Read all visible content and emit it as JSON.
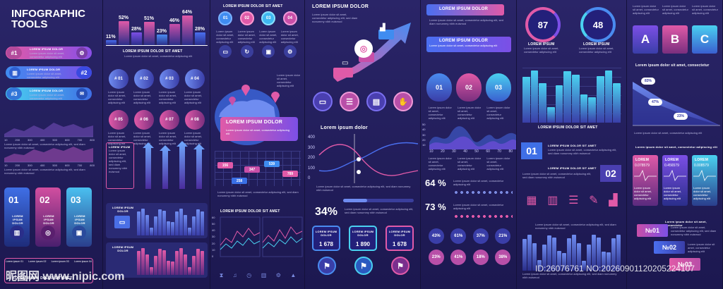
{
  "title": {
    "line1": "INFOGRAPHIC",
    "line2": "TOOLS"
  },
  "lorem": {
    "heading_a": "LOREM IPSUM DOLOR SIT AMET",
    "heading_b": "LOREM IPSUM DOLOR",
    "heading_c": "LOREM IPSUM",
    "heading_d": "Lorem ipsum dolor",
    "heading_e": "Lorem ipsum dolor sit amet, consectetur",
    "heading_f": "Lorem ipsum dolor sit amet, consectetur adipiscing elit",
    "body": "Lorem ipsum dolor sit amet, consectetur adipiscing elit, sed diam nonummy nibh euismod",
    "body_short": "Lorem ipsum dolor sit amet, consectetur adipiscing elit"
  },
  "col1": {
    "steps": [
      "#1",
      "#2",
      "#3"
    ],
    "axis": [
      "10",
      "200",
      "300",
      "400",
      "500",
      "600",
      "700",
      "800"
    ],
    "cards": [
      "01",
      "02",
      "03"
    ],
    "card_label": "LOREM IPSUM DOLOR",
    "bottom": "LOREM IPSUM DOLOR SIT AMET",
    "tabs": [
      "Lorem ipsum 01",
      "Lorem ipsum 02",
      "Lorem ipsum 03",
      "Lorem ipsum 04"
    ]
  },
  "col2": {
    "bar_pcts": [
      "11%",
      "52%",
      "28%",
      "51%",
      "23%",
      "46%",
      "64%",
      "28%"
    ],
    "bar_values": [
      11,
      52,
      28,
      51,
      23,
      46,
      64,
      28
    ],
    "caption": "LOREM IPSUM DOLOR SIT AMET",
    "hashes_top": [
      "# 01",
      "# 02",
      "# 03",
      "# 04"
    ],
    "hashes_bottom": [
      "# 05",
      "# 06",
      "# 07",
      "# 08"
    ],
    "y_axis": [
      "400",
      "300",
      "200",
      "100"
    ],
    "card": "LOREM IPSUM DOLOR"
  },
  "col3": {
    "heading": "LOREM IPSUM DOLOR SIT AMET",
    "steps": [
      "01",
      "02",
      "03",
      "04"
    ],
    "map_title": "LOREM IPSUM DOLOR",
    "grid_values": [
      "156",
      "347",
      "539",
      "258",
      "789"
    ],
    "chart_title": "LOREM IPSUM DOLOR SIT AMET",
    "y_axis": [
      "60",
      "50",
      "40",
      "30",
      "20",
      "10",
      "0"
    ]
  },
  "col4": {
    "heading": "LOREM IPSUM DOLOR",
    "line_title": "Lorem ipsum dolor",
    "y_axis": [
      "400",
      "300",
      "200",
      "100",
      "0"
    ],
    "percent": "34%",
    "counters": [
      {
        "label": "LOREM IPSUM DOLOR",
        "value": "1 678"
      },
      {
        "label": "LOREM IPSUM DOLOR",
        "value": "1 890"
      },
      {
        "label": "LOREM IPSUM DOLOR",
        "value": "1 678"
      }
    ]
  },
  "col5": {
    "banners": [
      "LOREM IPSUM DOLOR",
      "LOREM IPSUM DOLOR"
    ],
    "drops": [
      "01",
      "02",
      "03"
    ],
    "x_axis": [
      "10",
      "20",
      "30",
      "40",
      "50",
      "60",
      "70",
      "80"
    ],
    "y_axis": [
      "50",
      "40",
      "30",
      "20",
      "10"
    ],
    "pct1": "64 %",
    "pct2": "73 %",
    "bubbles": [
      "43%",
      "61%",
      "37%",
      "21%",
      "23%",
      "41%",
      "18%",
      "38%"
    ]
  },
  "col6": {
    "gauges": [
      {
        "value": "87",
        "label": "LOREM IPSUM"
      },
      {
        "value": "48",
        "label": "LOREM IPSUM"
      }
    ],
    "bar_caption": "LOREM IPSUM DOLOR SIT AMET",
    "ribbons": [
      "01",
      "02"
    ],
    "ribbon_text": "LOREM IPSUM DOLOR SIT AMET"
  },
  "col7": {
    "letters": [
      "A",
      "B",
      "C"
    ],
    "area_pcts": [
      "83%",
      "47%",
      "23%"
    ],
    "hearts": [
      "LOREM",
      "LOREM",
      "LOREM"
    ],
    "heart_vals": [
      "0.078579",
      "0.456579",
      "0.008579"
    ],
    "nos": [
      "№01",
      "№02",
      "№03"
    ]
  },
  "watermark": {
    "logo": "昵图网 www.nipic.com",
    "id": "ID:26076761 NO:20260901120205224107"
  },
  "colors": {
    "pink": "#e05aa8",
    "blue": "#3f8cf0",
    "cyan": "#4ad0f0",
    "purple": "#7c4fe6",
    "bg": "#1a1646"
  }
}
